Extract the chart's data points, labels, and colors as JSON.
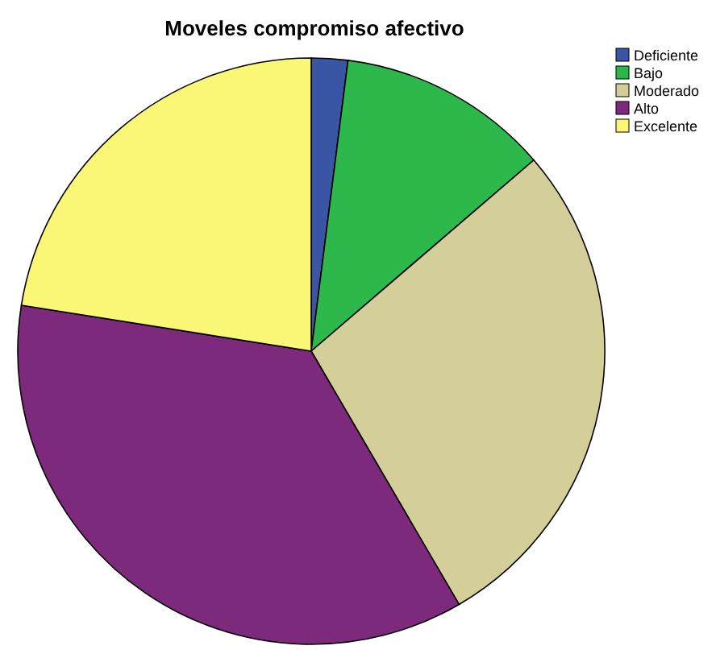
{
  "chart_data": {
    "type": "pie",
    "title": "Moveles compromiso afectivo",
    "categories": [
      "Deficiente",
      "Bajo",
      "Moderado",
      "Alto",
      "Excelente"
    ],
    "values": [
      2,
      11.7,
      27.9,
      35.9,
      22.5
    ],
    "colors": [
      "#3a55a4",
      "#2db84b",
      "#d4cf98",
      "#7d2a7c",
      "#faf776"
    ],
    "legend": "top right"
  }
}
